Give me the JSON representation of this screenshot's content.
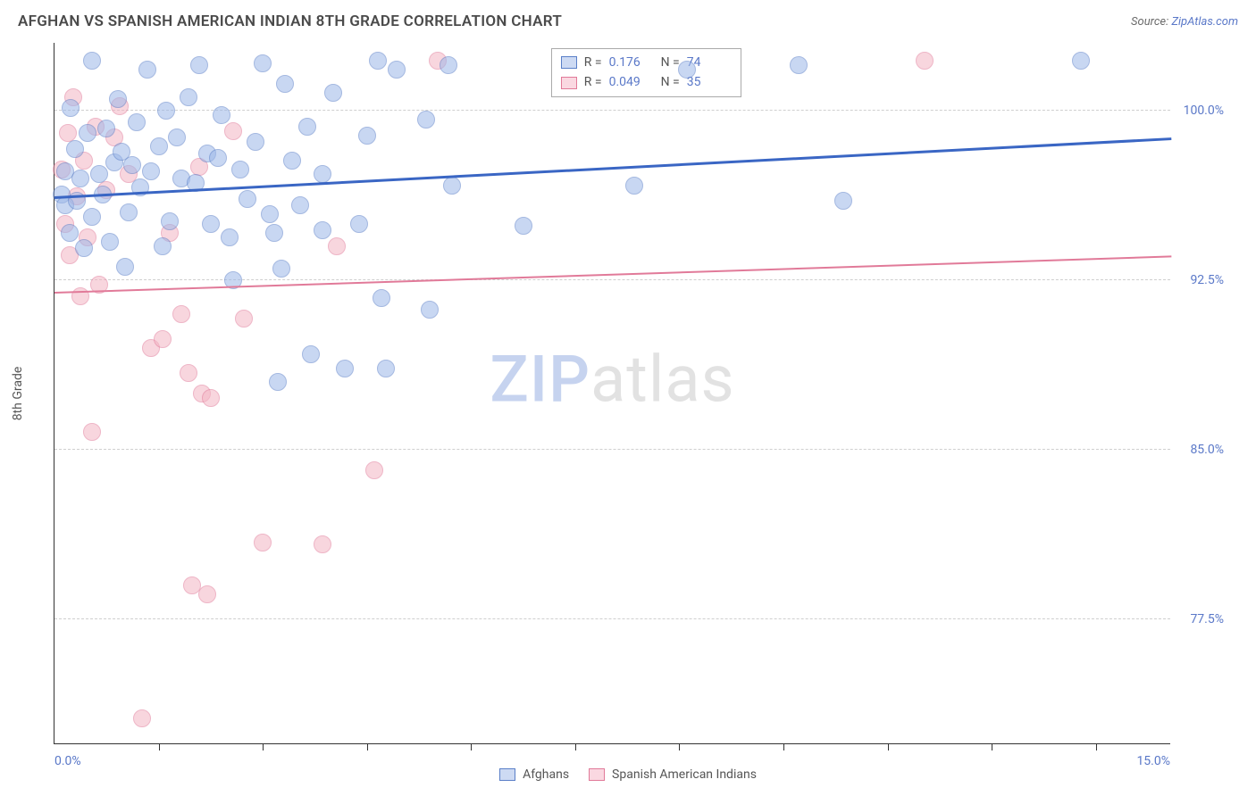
{
  "header": {
    "title": "AFGHAN VS SPANISH AMERICAN INDIAN 8TH GRADE CORRELATION CHART",
    "attribution_prefix": "Source: ",
    "attribution_source": "ZipAtlas.com"
  },
  "chart": {
    "type": "scatter-with-trend",
    "background": "#ffffff",
    "grid_color": "#cfcfcf",
    "axis_color": "#333333",
    "yaxis_label": "8th Grade",
    "watermark": {
      "part1": "ZIP",
      "part2": "atlas"
    },
    "xlim": [
      0,
      15
    ],
    "ylim": [
      72,
      103
    ],
    "yticks": [
      77.5,
      85.0,
      92.5,
      100.0
    ],
    "ytick_labels": [
      "77.5%",
      "85.0%",
      "92.5%",
      "100.0%"
    ],
    "xticks": [
      1.4,
      2.8,
      4.2,
      5.6,
      7.0,
      8.4,
      9.8,
      11.2,
      12.6,
      14.0
    ],
    "xaxis_start_label": "0.0%",
    "xaxis_end_label": "15.0%",
    "tick_label_color": "#5a78c8",
    "axis_title_color": "#555555",
    "series": {
      "afghans": {
        "label": "Afghans",
        "fill": "#9cb7e8",
        "stroke": "#5a7fc8",
        "fill_opacity": 0.55,
        "marker_radius": 10,
        "trend_color": "#3a66c4",
        "R": "0.176",
        "N": "74",
        "trend": {
          "y_at_xmin": 96.2,
          "y_at_xmax": 98.8
        },
        "points": [
          [
            0.1,
            96.3
          ],
          [
            0.15,
            95.8
          ],
          [
            0.15,
            97.3
          ],
          [
            0.2,
            94.6
          ],
          [
            0.22,
            100.1
          ],
          [
            0.28,
            98.3
          ],
          [
            0.3,
            96.0
          ],
          [
            0.35,
            97.0
          ],
          [
            0.4,
            93.9
          ],
          [
            0.45,
            99.0
          ],
          [
            0.5,
            95.3
          ],
          [
            0.5,
            102.2
          ],
          [
            0.6,
            97.2
          ],
          [
            0.65,
            96.3
          ],
          [
            0.7,
            99.2
          ],
          [
            0.75,
            94.2
          ],
          [
            0.8,
            97.7
          ],
          [
            0.85,
            100.5
          ],
          [
            0.9,
            98.2
          ],
          [
            0.95,
            93.1
          ],
          [
            1.0,
            95.5
          ],
          [
            1.05,
            97.6
          ],
          [
            1.1,
            99.5
          ],
          [
            1.15,
            96.6
          ],
          [
            1.25,
            101.8
          ],
          [
            1.3,
            97.3
          ],
          [
            1.4,
            98.4
          ],
          [
            1.45,
            94.0
          ],
          [
            1.5,
            100.0
          ],
          [
            1.55,
            95.1
          ],
          [
            1.65,
            98.8
          ],
          [
            1.7,
            97.0
          ],
          [
            1.8,
            100.6
          ],
          [
            1.9,
            96.8
          ],
          [
            1.95,
            102.0
          ],
          [
            2.05,
            98.1
          ],
          [
            2.1,
            95.0
          ],
          [
            2.2,
            97.9
          ],
          [
            2.25,
            99.8
          ],
          [
            2.35,
            94.4
          ],
          [
            2.4,
            92.5
          ],
          [
            2.5,
            97.4
          ],
          [
            2.6,
            96.1
          ],
          [
            2.7,
            98.6
          ],
          [
            2.8,
            102.1
          ],
          [
            2.9,
            95.4
          ],
          [
            2.95,
            94.6
          ],
          [
            3.05,
            93.0
          ],
          [
            3.1,
            101.2
          ],
          [
            3.2,
            97.8
          ],
          [
            3.3,
            95.8
          ],
          [
            3.4,
            99.3
          ],
          [
            3.45,
            89.2
          ],
          [
            3.6,
            94.7
          ],
          [
            3.6,
            97.2
          ],
          [
            3.75,
            100.8
          ],
          [
            3.9,
            88.6
          ],
          [
            4.1,
            95.0
          ],
          [
            4.2,
            98.9
          ],
          [
            4.35,
            102.2
          ],
          [
            4.4,
            91.7
          ],
          [
            4.45,
            88.6
          ],
          [
            4.6,
            101.8
          ],
          [
            5.0,
            99.6
          ],
          [
            5.05,
            91.2
          ],
          [
            5.3,
            102.0
          ],
          [
            5.35,
            96.7
          ],
          [
            6.3,
            94.9
          ],
          [
            7.8,
            96.7
          ],
          [
            8.5,
            101.8
          ],
          [
            10.0,
            102.0
          ],
          [
            10.6,
            96.0
          ],
          [
            13.8,
            102.2
          ],
          [
            3.0,
            88.0
          ]
        ]
      },
      "spanish": {
        "label": "Spanish American Indians",
        "fill": "#f3b5c4",
        "stroke": "#e17a99",
        "fill_opacity": 0.55,
        "marker_radius": 10,
        "trend_color": "#e17a99",
        "R": "0.049",
        "N": "35",
        "trend": {
          "y_at_xmin": 92.0,
          "y_at_xmax": 93.6
        },
        "points": [
          [
            0.1,
            97.4
          ],
          [
            0.15,
            95.0
          ],
          [
            0.18,
            99.0
          ],
          [
            0.2,
            93.6
          ],
          [
            0.25,
            100.6
          ],
          [
            0.3,
            96.2
          ],
          [
            0.35,
            91.8
          ],
          [
            0.4,
            97.8
          ],
          [
            0.45,
            94.4
          ],
          [
            0.5,
            85.8
          ],
          [
            0.55,
            99.3
          ],
          [
            0.6,
            92.3
          ],
          [
            0.7,
            96.5
          ],
          [
            0.8,
            98.8
          ],
          [
            0.88,
            100.2
          ],
          [
            1.0,
            97.2
          ],
          [
            1.18,
            73.1
          ],
          [
            1.3,
            89.5
          ],
          [
            1.45,
            89.9
          ],
          [
            1.55,
            94.6
          ],
          [
            1.7,
            91.0
          ],
          [
            1.8,
            88.4
          ],
          [
            1.85,
            79.0
          ],
          [
            1.95,
            97.5
          ],
          [
            1.98,
            87.5
          ],
          [
            2.05,
            78.6
          ],
          [
            2.4,
            99.1
          ],
          [
            2.55,
            90.8
          ],
          [
            2.8,
            80.9
          ],
          [
            3.6,
            80.8
          ],
          [
            3.8,
            94.0
          ],
          [
            4.3,
            84.1
          ],
          [
            5.15,
            102.2
          ],
          [
            11.7,
            102.2
          ],
          [
            2.1,
            87.3
          ]
        ]
      }
    },
    "legend_box": {
      "r_label": "R =",
      "n_label": "N ="
    },
    "legend_bottom": {
      "sw_border_blue": "#5a7fc8",
      "sw_fill_blue": "#cddaf3",
      "sw_border_pink": "#e17a99",
      "sw_fill_pink": "#fad8e1"
    }
  }
}
